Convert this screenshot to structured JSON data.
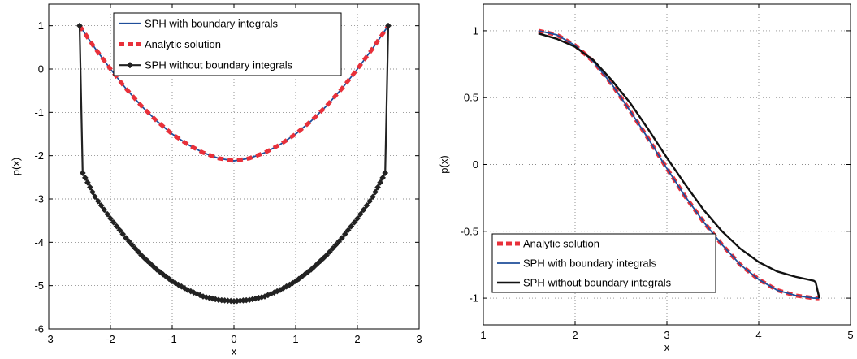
{
  "chart_data": [
    {
      "type": "line",
      "xlabel": "x",
      "ylabel": "p(x)",
      "xlim": [
        -3,
        3
      ],
      "ylim": [
        -6,
        1.5
      ],
      "xticks": [
        -3,
        -2,
        -1,
        0,
        1,
        2,
        3
      ],
      "yticks": [
        -6,
        -5,
        -4,
        -3,
        -2,
        -1,
        0,
        1
      ],
      "xtick_labels": [
        "-3",
        "-2",
        "-1",
        "0",
        "1",
        "2",
        "3"
      ],
      "ytick_labels": [
        "-6",
        "-5",
        "-4",
        "-3",
        "-2",
        "-1",
        "0",
        "1"
      ],
      "grid": true,
      "legend_placement": "top-center",
      "legend": [
        "SPH with boundary integrals",
        "Analytic solution",
        "SPH without boundary integrals"
      ],
      "series": [
        {
          "name": "SPH with boundary integrals",
          "color": "#1f4e9a",
          "style": "solid",
          "x": [
            -2.5,
            -2.25,
            -2.0,
            -1.75,
            -1.5,
            -1.25,
            -1.0,
            -0.75,
            -0.5,
            -0.25,
            0.0,
            0.25,
            0.5,
            0.75,
            1.0,
            1.25,
            1.5,
            1.75,
            2.0,
            2.25,
            2.5
          ],
          "y": [
            1.0,
            0.48,
            0.0,
            -0.45,
            -0.85,
            -1.2,
            -1.5,
            -1.74,
            -1.93,
            -2.06,
            -2.12,
            -2.06,
            -1.93,
            -1.74,
            -1.5,
            -1.2,
            -0.85,
            -0.45,
            0.0,
            0.48,
            1.0
          ]
        },
        {
          "name": "Analytic solution",
          "color": "#e8303a",
          "style": "dashed",
          "x": [
            -2.5,
            -2.25,
            -2.0,
            -1.75,
            -1.5,
            -1.25,
            -1.0,
            -0.75,
            -0.5,
            -0.25,
            0.0,
            0.25,
            0.5,
            0.75,
            1.0,
            1.25,
            1.5,
            1.75,
            2.0,
            2.25,
            2.5
          ],
          "y": [
            1.0,
            0.48,
            0.0,
            -0.45,
            -0.85,
            -1.2,
            -1.5,
            -1.74,
            -1.93,
            -2.06,
            -2.12,
            -2.06,
            -1.93,
            -1.74,
            -1.5,
            -1.2,
            -0.85,
            -0.45,
            0.0,
            0.48,
            1.0
          ]
        },
        {
          "name": "SPH without boundary integrals",
          "color": "#222222",
          "style": "solid-diamond",
          "x": [
            -2.5,
            -2.45,
            -2.25,
            -2.0,
            -1.75,
            -1.5,
            -1.25,
            -1.0,
            -0.75,
            -0.5,
            -0.25,
            0.0,
            0.25,
            0.5,
            0.75,
            1.0,
            1.25,
            1.5,
            1.75,
            2.0,
            2.25,
            2.45,
            2.5
          ],
          "y": [
            1.0,
            -2.4,
            -2.95,
            -3.45,
            -3.9,
            -4.3,
            -4.63,
            -4.9,
            -5.1,
            -5.25,
            -5.33,
            -5.36,
            -5.33,
            -5.25,
            -5.1,
            -4.9,
            -4.63,
            -4.3,
            -3.9,
            -3.45,
            -2.95,
            -2.4,
            1.0
          ]
        }
      ]
    },
    {
      "type": "line",
      "xlabel": "x",
      "ylabel": "p(x)",
      "xlim": [
        1,
        5
      ],
      "ylim": [
        -1.2,
        1.2
      ],
      "xticks": [
        1,
        2,
        3,
        4,
        5
      ],
      "yticks": [
        -1,
        -0.5,
        0,
        0.5,
        1
      ],
      "xtick_labels": [
        "1",
        "2",
        "3",
        "4",
        "5"
      ],
      "ytick_labels": [
        "-1",
        "-0.5",
        "0",
        "0.5",
        "1"
      ],
      "grid": true,
      "legend_placement": "bottom-left",
      "legend": [
        "Analytic solution",
        "SPH with boundary integrals",
        "SPH without boundary integrals"
      ],
      "series": [
        {
          "name": "Analytic solution",
          "color": "#e8303a",
          "style": "dashed",
          "x": [
            1.6,
            1.8,
            2.0,
            2.2,
            2.4,
            2.6,
            2.8,
            3.0,
            3.2,
            3.4,
            3.6,
            3.8,
            4.0,
            4.2,
            4.4,
            4.6,
            4.66
          ],
          "y": [
            1.0,
            0.97,
            0.89,
            0.77,
            0.6,
            0.4,
            0.19,
            -0.03,
            -0.24,
            -0.43,
            -0.6,
            -0.75,
            -0.86,
            -0.94,
            -0.98,
            -1.0,
            -1.0
          ]
        },
        {
          "name": "SPH with boundary integrals",
          "color": "#1f4e9a",
          "style": "solid",
          "x": [
            1.6,
            1.8,
            2.0,
            2.2,
            2.4,
            2.6,
            2.8,
            3.0,
            3.2,
            3.4,
            3.6,
            3.8,
            4.0,
            4.2,
            4.4,
            4.6,
            4.66
          ],
          "y": [
            1.0,
            0.97,
            0.89,
            0.77,
            0.6,
            0.4,
            0.19,
            -0.03,
            -0.24,
            -0.43,
            -0.6,
            -0.75,
            -0.86,
            -0.94,
            -0.98,
            -1.0,
            -1.0
          ]
        },
        {
          "name": "SPH without boundary integrals",
          "color": "#111111",
          "style": "solid-thick",
          "x": [
            1.6,
            1.8,
            2.0,
            2.2,
            2.4,
            2.6,
            2.8,
            3.0,
            3.2,
            3.4,
            3.6,
            3.8,
            4.0,
            4.2,
            4.4,
            4.6,
            4.62,
            4.66
          ],
          "y": [
            0.98,
            0.94,
            0.88,
            0.78,
            0.63,
            0.46,
            0.26,
            0.05,
            -0.15,
            -0.34,
            -0.5,
            -0.63,
            -0.73,
            -0.8,
            -0.84,
            -0.87,
            -0.88,
            -1.0
          ]
        }
      ]
    }
  ]
}
